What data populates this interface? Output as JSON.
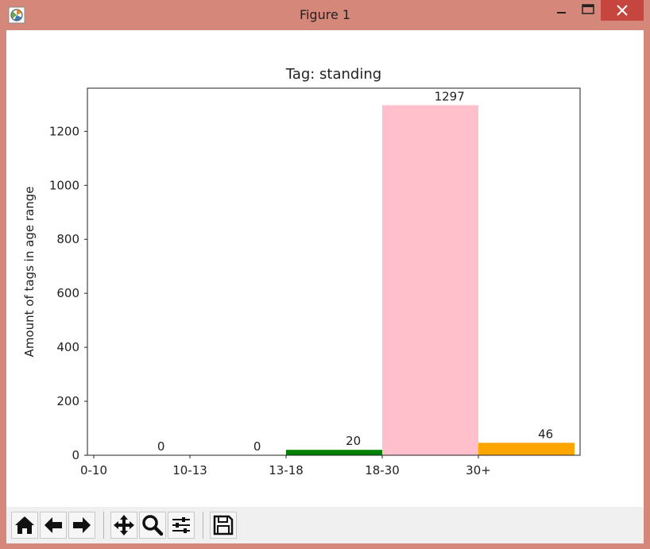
{
  "window": {
    "title": "Figure 1",
    "icons": [
      "app-icon",
      "minimize-icon",
      "maximize-icon",
      "close-icon"
    ]
  },
  "toolbar": {
    "buttons": [
      {
        "name": "home-button",
        "icon": "home-icon"
      },
      {
        "name": "back-button",
        "icon": "arrow-left-icon"
      },
      {
        "name": "forward-button",
        "icon": "arrow-right-icon"
      },
      {
        "name": "pan-button",
        "icon": "move-icon"
      },
      {
        "name": "zoom-button",
        "icon": "magnifier-icon"
      },
      {
        "name": "subplots-button",
        "icon": "sliders-icon"
      },
      {
        "name": "save-button",
        "icon": "floppy-disk-icon"
      }
    ]
  },
  "chart_data": {
    "type": "bar",
    "title": "Tag: standing",
    "xlabel": "",
    "ylabel": "Amount of tags in age range",
    "categories": [
      "0-10",
      "10-13",
      "13-18",
      "18-30",
      "30+"
    ],
    "values": [
      0,
      0,
      20,
      1297,
      46
    ],
    "colors": [
      "#1f77b4",
      "#1f77b4",
      "#008000",
      "#ffc0cb",
      "#ffa500"
    ],
    "ylim": [
      0,
      1360
    ],
    "yticks": [
      0,
      200,
      400,
      600,
      800,
      1000,
      1200
    ],
    "grid": false,
    "legend": "none",
    "bar_alignment": "edge"
  }
}
